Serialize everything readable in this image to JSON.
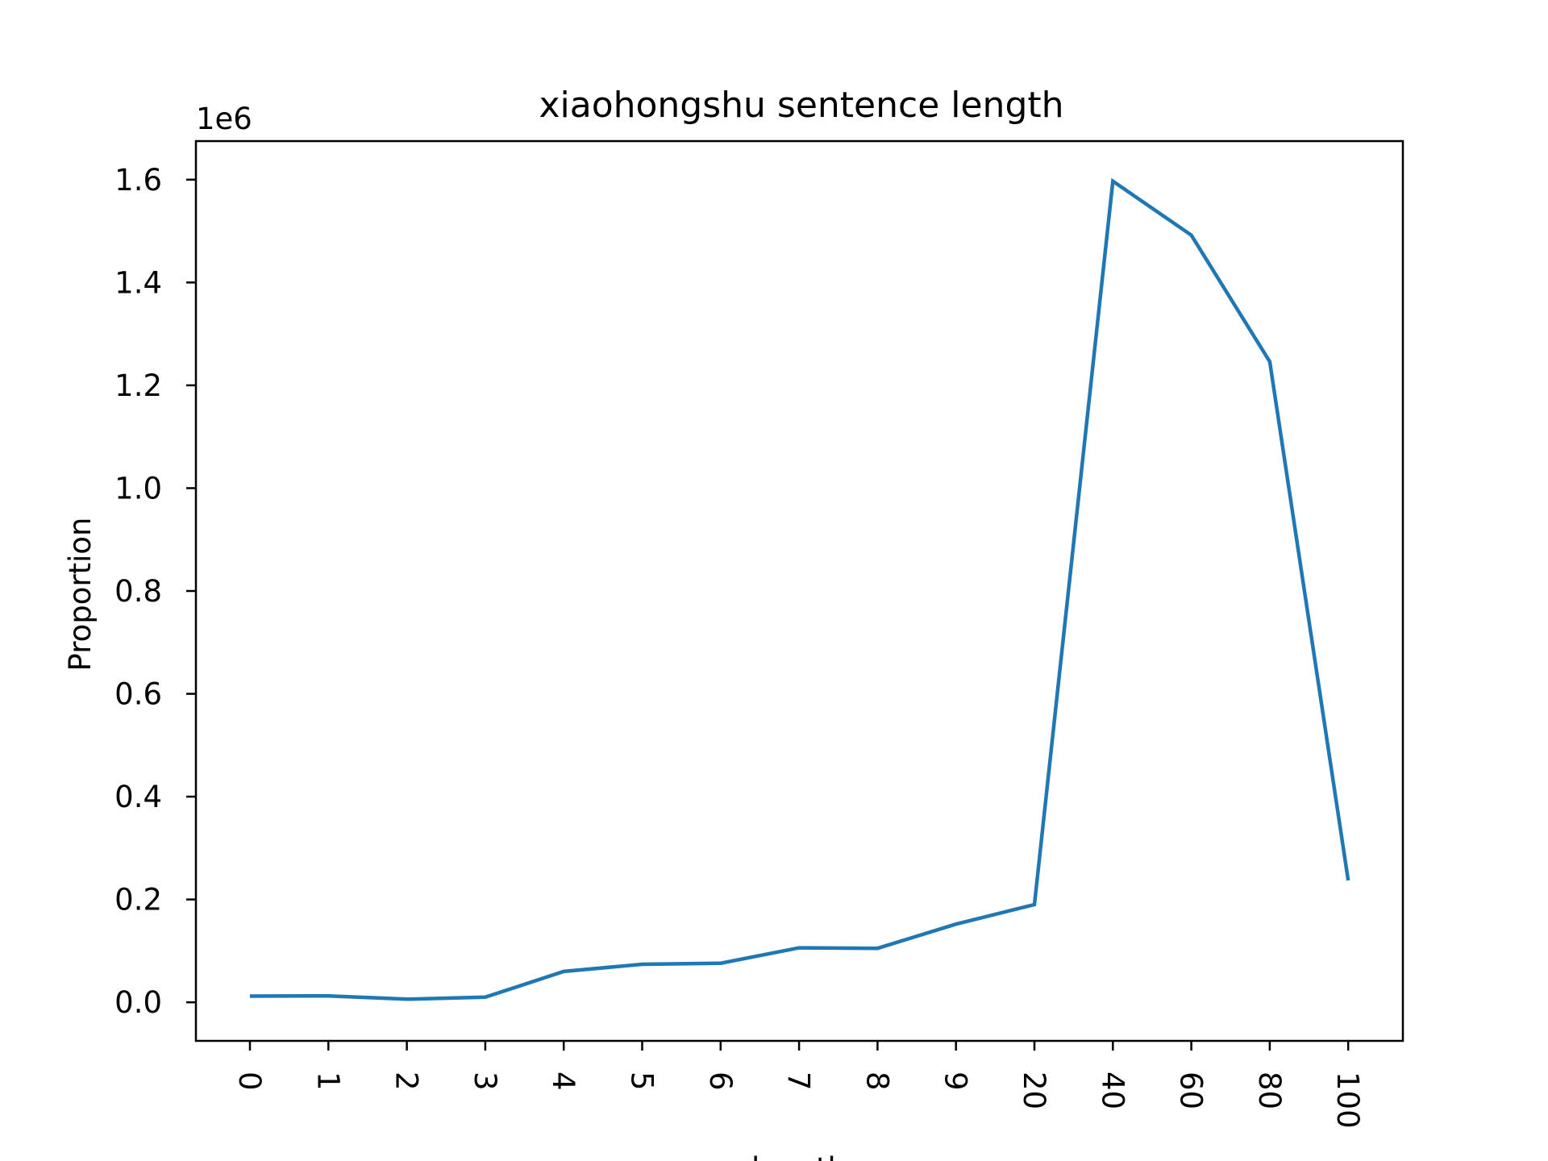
{
  "chart_data": {
    "type": "line",
    "title": "xiaohongshu sentence length",
    "xlabel": "length",
    "ylabel": "Proportion",
    "y_multiplier_label": "1e6",
    "categories": [
      "0",
      "1",
      "2",
      "3",
      "4",
      "5",
      "6",
      "7",
      "8",
      "9",
      "20",
      "40",
      "60",
      "80",
      "100"
    ],
    "series": [
      {
        "values": [
          12000,
          12500,
          6000,
          10000,
          60000,
          74000,
          76000,
          106000,
          105000,
          152000,
          190000,
          1597000,
          1492000,
          1246000,
          237000
        ],
        "color": "#1f77b4"
      }
    ],
    "ylim": [
      -75000,
      1675000
    ],
    "yticks": [
      0,
      200000,
      400000,
      600000,
      800000,
      1000000,
      1200000,
      1400000,
      1600000
    ],
    "ytick_labels": [
      "0.0",
      "0.2",
      "0.4",
      "0.6",
      "0.8",
      "1.0",
      "1.2",
      "1.4",
      "1.6"
    ],
    "xtick_rotation": "-90",
    "grid": false,
    "legend": "none"
  }
}
